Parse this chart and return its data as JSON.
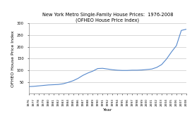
{
  "title_line1": "New York Metro Single-Family House Prices:  1976-2008",
  "title_line2": "(OFHEO House Price Index)",
  "xlabel": "Year",
  "ylabel": "OFHEO House Price Index",
  "line_color": "#5588cc",
  "background_color": "#ffffff",
  "plot_bg_color": "#ffffff",
  "grid_color": "#bbbbbb",
  "ylim": [
    0,
    300
  ],
  "yticks": [
    50,
    100,
    150,
    200,
    250,
    300
  ],
  "years": [
    1976,
    1977,
    1978,
    1979,
    1980,
    1981,
    1982,
    1983,
    1984,
    1985,
    1986,
    1987,
    1988,
    1989,
    1990,
    1991,
    1992,
    1993,
    1994,
    1995,
    1996,
    1997,
    1998,
    1999,
    2000,
    2001,
    2002,
    2003,
    2004,
    2005,
    2006,
    2007,
    2008
  ],
  "values": [
    30,
    31,
    33,
    35,
    37,
    38,
    39,
    42,
    48,
    55,
    65,
    78,
    88,
    96,
    107,
    108,
    105,
    102,
    100,
    99,
    99,
    100,
    100,
    101,
    103,
    105,
    112,
    124,
    148,
    178,
    205,
    270,
    275
  ],
  "title_fontsize": 4.8,
  "axis_label_fontsize": 4.5,
  "tick_fontsize": 3.2
}
